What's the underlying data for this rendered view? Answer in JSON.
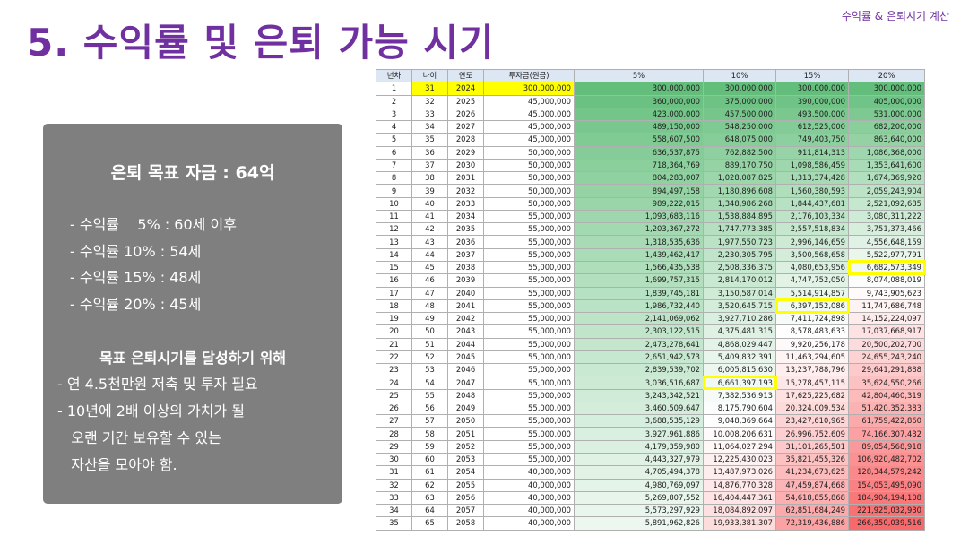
{
  "header": {
    "title": "5. 수익률 및 은퇴 가능 시기",
    "subtitle": "수익률 & 은퇴시기 계산"
  },
  "panel": {
    "target": "은퇴 목표 자금 : 64억",
    "rates": [
      "- 수익률    5% : 60세 이후",
      "- 수익률 10% : 54세",
      "- 수익률 15% : 48세",
      "- 수익률 20% : 45세"
    ],
    "goal_title": "목표 은퇴시기를 달성하기 위해",
    "goal_lines": [
      "- 연 4.5천만원 저축 및 투자 필요",
      "- 10년에 2배 이상의 가치가 될",
      "   오랜 기간 보유할 수 있는",
      "   자산을 모아야 함."
    ]
  },
  "table": {
    "headers": [
      "년차",
      "나이",
      "연도",
      "투자금(원금)",
      "5%",
      "10%",
      "15%",
      "20%"
    ],
    "highlight_cells": [
      [
        15,
        7
      ],
      [
        18,
        6
      ],
      [
        24,
        5
      ]
    ],
    "colors": {
      "yellow": "#ffff00",
      "header": "#dde7f3",
      "high": "#63be7b",
      "mid": "#ffffff",
      "low": "#f8696b"
    },
    "rows": [
      [
        "1",
        "31",
        "2024",
        "300,000,000",
        "300,000,000",
        "300,000,000",
        "300,000,000",
        "300,000,000"
      ],
      [
        "2",
        "32",
        "2025",
        "45,000,000",
        "360,000,000",
        "375,000,000",
        "390,000,000",
        "405,000,000"
      ],
      [
        "3",
        "33",
        "2026",
        "45,000,000",
        "423,000,000",
        "457,500,000",
        "493,500,000",
        "531,000,000"
      ],
      [
        "4",
        "34",
        "2027",
        "45,000,000",
        "489,150,000",
        "548,250,000",
        "612,525,000",
        "682,200,000"
      ],
      [
        "5",
        "35",
        "2028",
        "45,000,000",
        "558,607,500",
        "648,075,000",
        "749,403,750",
        "863,640,000"
      ],
      [
        "6",
        "36",
        "2029",
        "50,000,000",
        "636,537,875",
        "762,882,500",
        "911,814,313",
        "1,086,368,000"
      ],
      [
        "7",
        "37",
        "2030",
        "50,000,000",
        "718,364,769",
        "889,170,750",
        "1,098,586,459",
        "1,353,641,600"
      ],
      [
        "8",
        "38",
        "2031",
        "50,000,000",
        "804,283,007",
        "1,028,087,825",
        "1,313,374,428",
        "1,674,369,920"
      ],
      [
        "9",
        "39",
        "2032",
        "50,000,000",
        "894,497,158",
        "1,180,896,608",
        "1,560,380,593",
        "2,059,243,904"
      ],
      [
        "10",
        "40",
        "2033",
        "50,000,000",
        "989,222,015",
        "1,348,986,268",
        "1,844,437,681",
        "2,521,092,685"
      ],
      [
        "11",
        "41",
        "2034",
        "55,000,000",
        "1,093,683,116",
        "1,538,884,895",
        "2,176,103,334",
        "3,080,311,222"
      ],
      [
        "12",
        "42",
        "2035",
        "55,000,000",
        "1,203,367,272",
        "1,747,773,385",
        "2,557,518,834",
        "3,751,373,466"
      ],
      [
        "13",
        "43",
        "2036",
        "55,000,000",
        "1,318,535,636",
        "1,977,550,723",
        "2,996,146,659",
        "4,556,648,159"
      ],
      [
        "14",
        "44",
        "2037",
        "55,000,000",
        "1,439,462,417",
        "2,230,305,795",
        "3,500,568,658",
        "5,522,977,791"
      ],
      [
        "15",
        "45",
        "2038",
        "55,000,000",
        "1,566,435,538",
        "2,508,336,375",
        "4,080,653,956",
        "6,682,573,349"
      ],
      [
        "16",
        "46",
        "2039",
        "55,000,000",
        "1,699,757,315",
        "2,814,170,012",
        "4,747,752,050",
        "8,074,088,019"
      ],
      [
        "17",
        "47",
        "2040",
        "55,000,000",
        "1,839,745,181",
        "3,150,587,014",
        "5,514,914,857",
        "9,743,905,623"
      ],
      [
        "18",
        "48",
        "2041",
        "55,000,000",
        "1,986,732,440",
        "3,520,645,715",
        "6,397,152,086",
        "11,747,686,748"
      ],
      [
        "19",
        "49",
        "2042",
        "55,000,000",
        "2,141,069,062",
        "3,927,710,286",
        "7,411,724,898",
        "14,152,224,097"
      ],
      [
        "20",
        "50",
        "2043",
        "55,000,000",
        "2,303,122,515",
        "4,375,481,315",
        "8,578,483,633",
        "17,037,668,917"
      ],
      [
        "21",
        "51",
        "2044",
        "55,000,000",
        "2,473,278,641",
        "4,868,029,447",
        "9,920,256,178",
        "20,500,202,700"
      ],
      [
        "22",
        "52",
        "2045",
        "55,000,000",
        "2,651,942,573",
        "5,409,832,391",
        "11,463,294,605",
        "24,655,243,240"
      ],
      [
        "23",
        "53",
        "2046",
        "55,000,000",
        "2,839,539,702",
        "6,005,815,630",
        "13,237,788,796",
        "29,641,291,888"
      ],
      [
        "24",
        "54",
        "2047",
        "55,000,000",
        "3,036,516,687",
        "6,661,397,193",
        "15,278,457,115",
        "35,624,550,266"
      ],
      [
        "25",
        "55",
        "2048",
        "55,000,000",
        "3,243,342,521",
        "7,382,536,913",
        "17,625,225,682",
        "42,804,460,319"
      ],
      [
        "26",
        "56",
        "2049",
        "55,000,000",
        "3,460,509,647",
        "8,175,790,604",
        "20,324,009,534",
        "51,420,352,383"
      ],
      [
        "27",
        "57",
        "2050",
        "55,000,000",
        "3,688,535,129",
        "9,048,369,664",
        "23,427,610,965",
        "61,759,422,860"
      ],
      [
        "28",
        "58",
        "2051",
        "55,000,000",
        "3,927,961,886",
        "10,008,206,631",
        "26,996,752,609",
        "74,166,307,432"
      ],
      [
        "29",
        "59",
        "2052",
        "55,000,000",
        "4,179,359,980",
        "11,064,027,294",
        "31,101,265,501",
        "89,054,568,918"
      ],
      [
        "30",
        "60",
        "2053",
        "55,000,000",
        "4,443,327,979",
        "12,225,430,023",
        "35,821,455,326",
        "106,920,482,702"
      ],
      [
        "31",
        "61",
        "2054",
        "40,000,000",
        "4,705,494,378",
        "13,487,973,026",
        "41,234,673,625",
        "128,344,579,242"
      ],
      [
        "32",
        "62",
        "2055",
        "40,000,000",
        "4,980,769,097",
        "14,876,770,328",
        "47,459,874,668",
        "154,053,495,090"
      ],
      [
        "33",
        "63",
        "2056",
        "40,000,000",
        "5,269,807,552",
        "16,404,447,361",
        "54,618,855,868",
        "184,904,194,108"
      ],
      [
        "34",
        "64",
        "2057",
        "40,000,000",
        "5,573,297,929",
        "18,084,892,097",
        "62,851,684,249",
        "221,925,032,930"
      ],
      [
        "35",
        "65",
        "2058",
        "40,000,000",
        "5,891,962,826",
        "19,933,381,307",
        "72,319,436,886",
        "266,350,039,516"
      ]
    ]
  }
}
